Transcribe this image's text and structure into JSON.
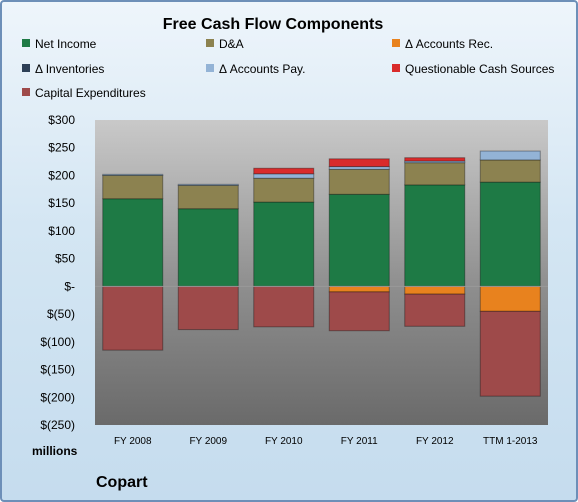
{
  "chart_data": {
    "type": "bar",
    "stacked": true,
    "title": "Free Cash Flow Components",
    "units_label": "millions",
    "company": "Copart",
    "categories": [
      "FY 2008",
      "FY 2009",
      "FY 2010",
      "FY 2011",
      "FY 2012",
      "TTM 1-2013"
    ],
    "ylim": [
      -250,
      300
    ],
    "yticks": [
      300,
      250,
      200,
      150,
      100,
      50,
      0,
      -50,
      -100,
      -150,
      -200,
      -250
    ],
    "ytick_labels": [
      "$300",
      "$250",
      "$200",
      "$150",
      "$100",
      "$50",
      "$-",
      "$(50)",
      "$(100)",
      "$(150)",
      "$(200)",
      "$(250)"
    ],
    "grid": false,
    "legend_placement": "top",
    "series": [
      {
        "name": "Net Income",
        "color": "#1e7a45",
        "values": [
          158,
          140,
          152,
          166,
          183,
          188
        ]
      },
      {
        "name": "D&A",
        "color": "#8c8250",
        "values": [
          42,
          42,
          43,
          45,
          40,
          40
        ]
      },
      {
        "name": "Δ Accounts Rec.",
        "color": "#e8821e",
        "values": [
          0,
          0,
          0,
          -10,
          -14,
          -45
        ]
      },
      {
        "name": "Δ Inventories",
        "color": "#2e4057",
        "values": [
          0,
          0,
          0,
          0,
          0,
          0
        ]
      },
      {
        "name": "Δ Accounts Pay.",
        "color": "#93b3d6",
        "values": [
          2,
          2,
          8,
          5,
          3,
          16
        ]
      },
      {
        "name": "Questionable Cash Sources",
        "color": "#d92b2b",
        "values": [
          0,
          0,
          10,
          14,
          6,
          0
        ]
      },
      {
        "name": "Capital Expenditures",
        "color": "#9e4a4a",
        "values": [
          -115,
          -78,
          -73,
          -70,
          -58,
          -153
        ]
      }
    ]
  }
}
